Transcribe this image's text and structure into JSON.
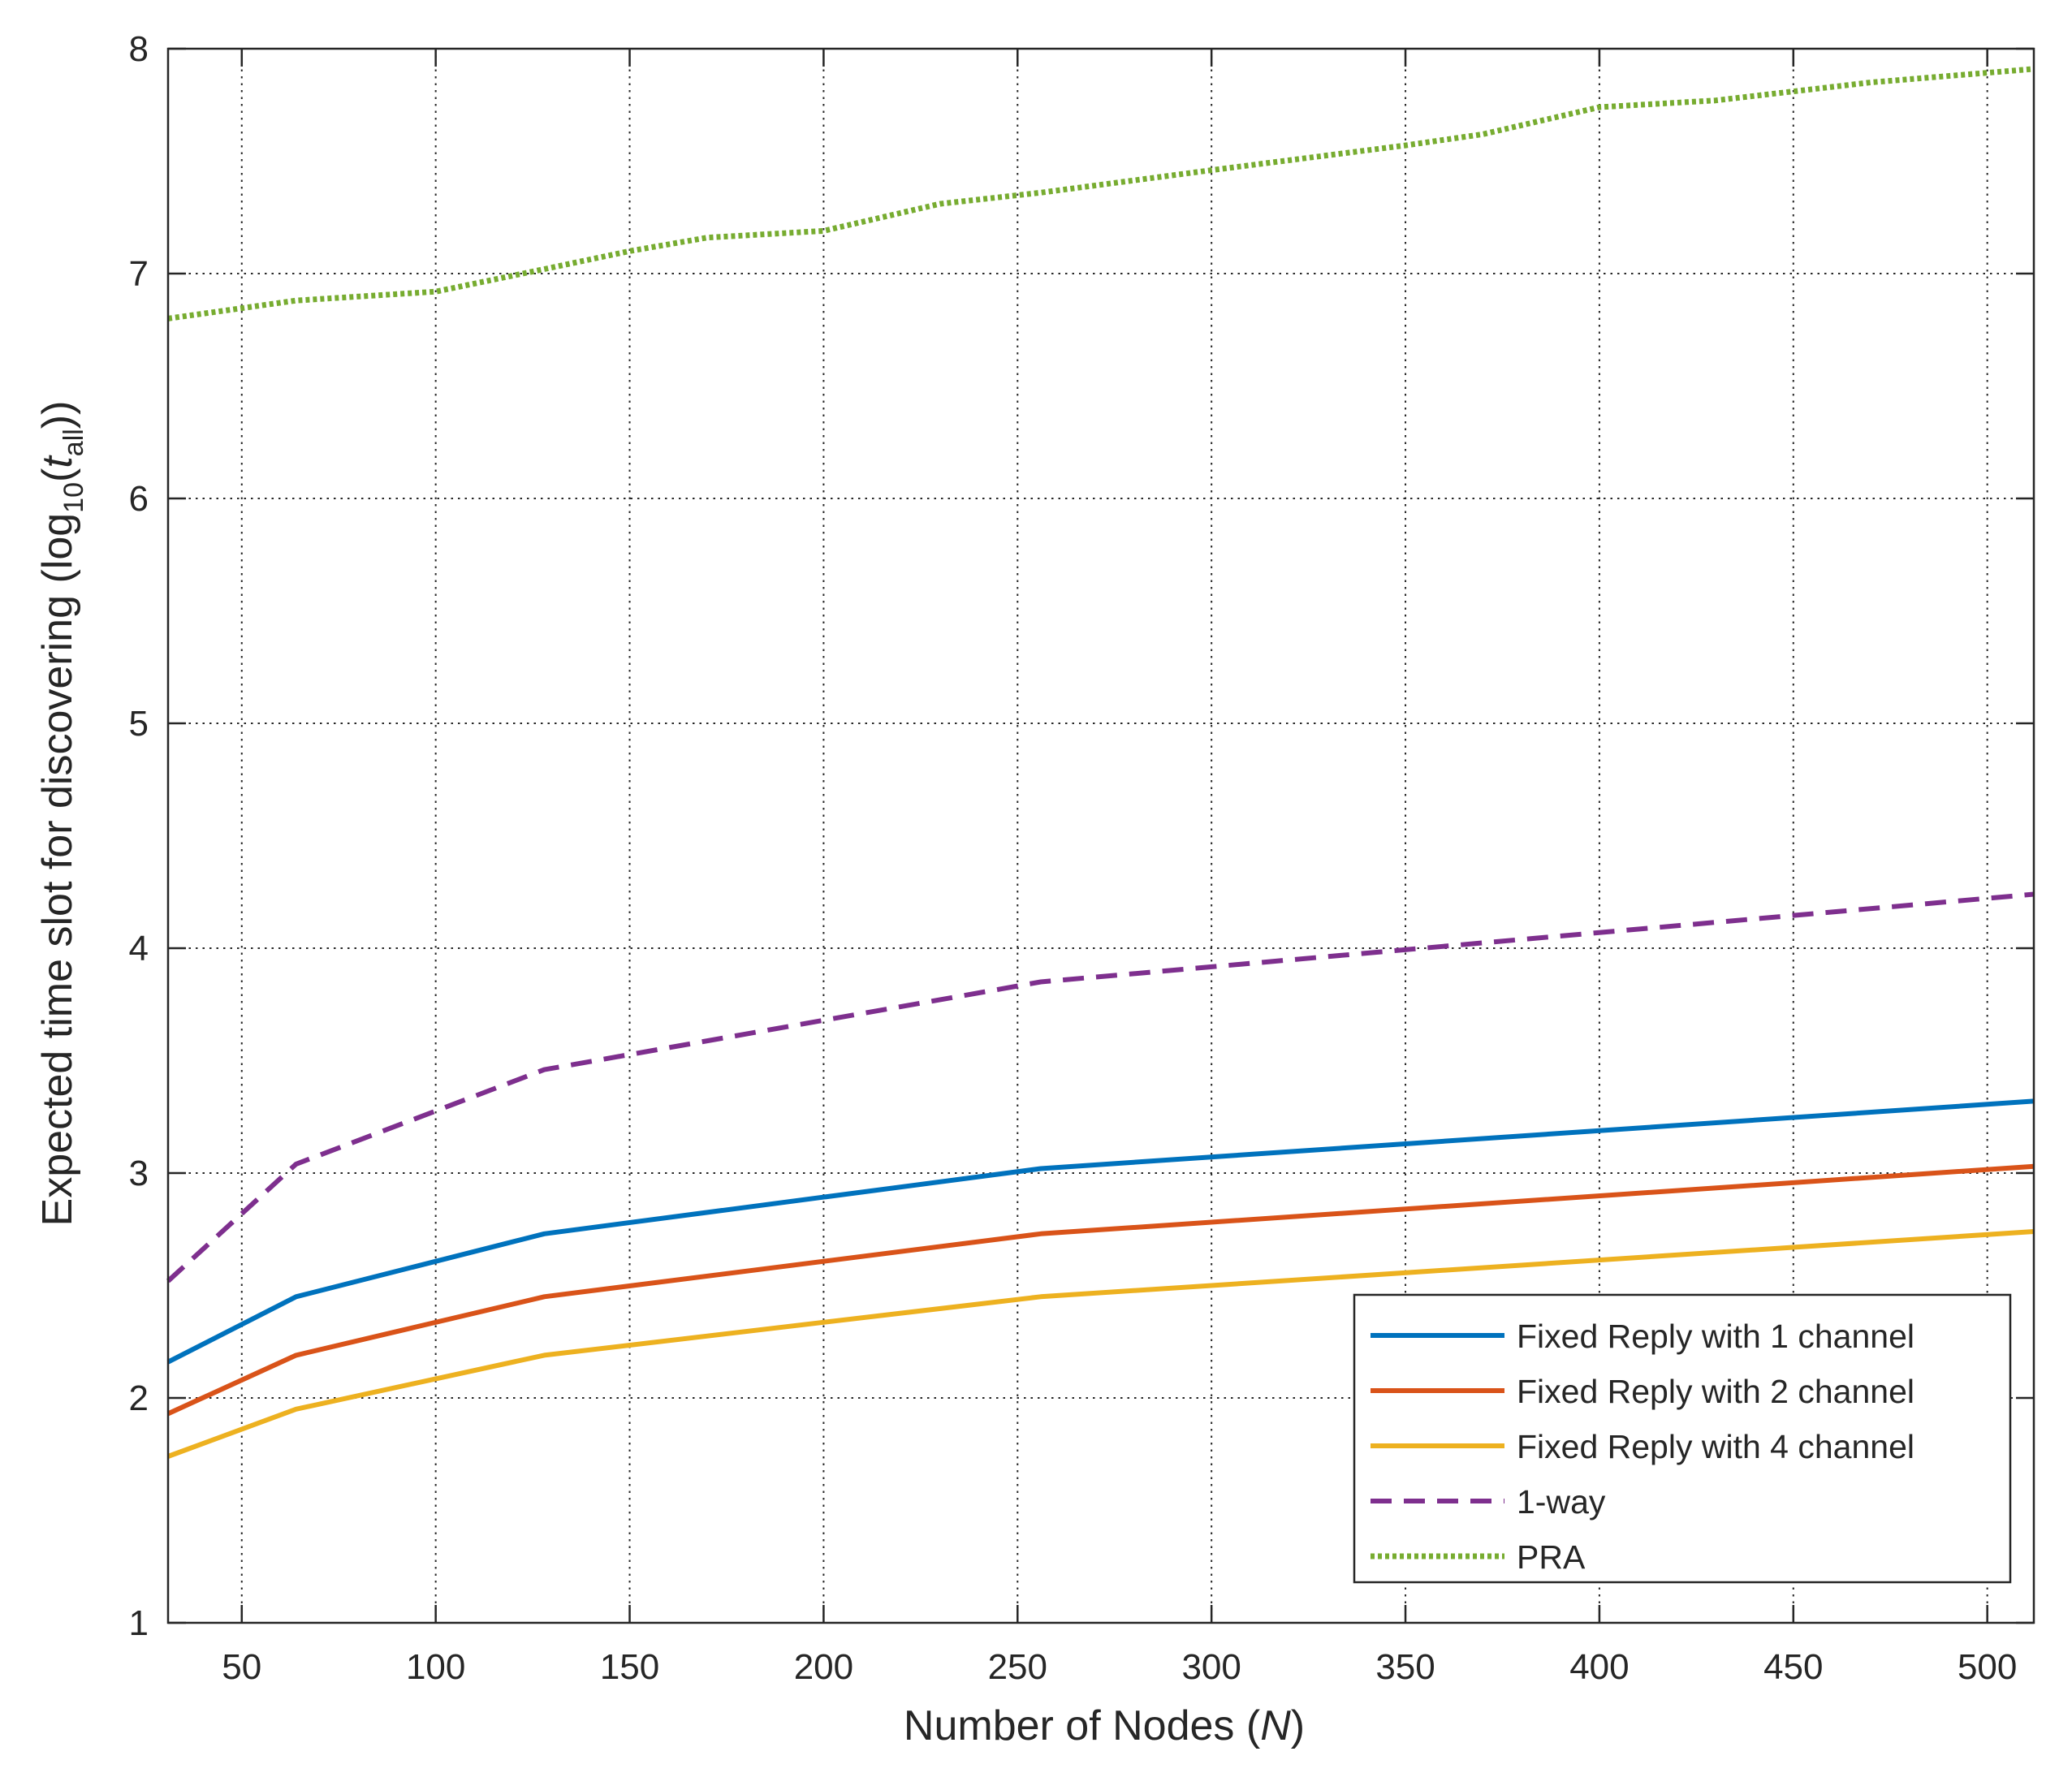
{
  "chart_data": {
    "type": "line",
    "xlabel": {
      "prefix": "Number of Nodes (",
      "var": "N",
      "suffix": ")"
    },
    "ylabel": {
      "prefix": "Expected time slot for discovering (log",
      "sub1": "10",
      "paren_open": "(",
      "var": "t",
      "sub2": "all",
      "suffix": "))"
    },
    "xlim": [
      31,
      512
    ],
    "ylim": [
      1,
      8
    ],
    "xticks": [
      50,
      100,
      150,
      200,
      250,
      300,
      350,
      400,
      450,
      500
    ],
    "yticks": [
      1,
      2,
      3,
      4,
      5,
      6,
      7,
      8
    ],
    "grid": true,
    "legend_position": "lower-right",
    "series": [
      {
        "name": "Fixed Reply with 1 channel",
        "color": "#0072BD",
        "style": "solid",
        "x": [
          31,
          64,
          128,
          256,
          512
        ],
        "y": [
          2.16,
          2.45,
          2.73,
          3.02,
          3.32
        ]
      },
      {
        "name": "Fixed Reply with 2 channel",
        "color": "#D95319",
        "style": "solid",
        "x": [
          31,
          64,
          128,
          256,
          512
        ],
        "y": [
          1.93,
          2.19,
          2.45,
          2.73,
          3.03
        ]
      },
      {
        "name": "Fixed Reply with 4 channel",
        "color": "#EDB120",
        "style": "solid",
        "x": [
          31,
          64,
          128,
          256,
          512
        ],
        "y": [
          1.74,
          1.95,
          2.19,
          2.45,
          2.74
        ]
      },
      {
        "name": "1-way",
        "color": "#7E2F8E",
        "style": "dashed",
        "x": [
          31,
          64,
          128,
          256,
          512
        ],
        "y": [
          2.52,
          3.04,
          3.46,
          3.85,
          4.24
        ]
      },
      {
        "name": "PRA",
        "color": "#77AC30",
        "style": "dotted",
        "x": [
          31,
          64,
          100,
          128,
          150,
          170,
          200,
          230,
          256,
          300,
          350,
          370,
          400,
          430,
          470,
          512
        ],
        "y": [
          6.8,
          6.88,
          6.92,
          7.02,
          7.1,
          7.16,
          7.19,
          7.31,
          7.36,
          7.46,
          7.57,
          7.62,
          7.74,
          7.77,
          7.85,
          7.91
        ]
      }
    ]
  }
}
